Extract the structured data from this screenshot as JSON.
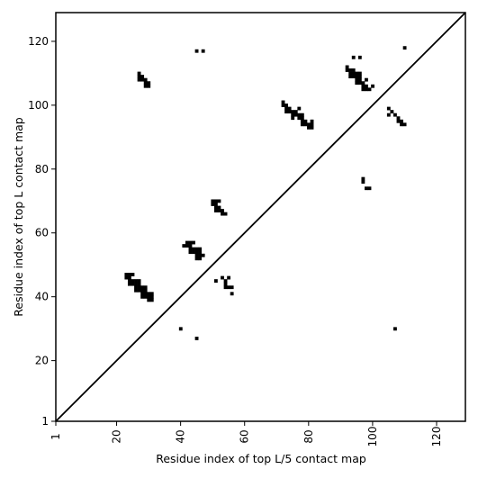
{
  "chart_data": {
    "type": "heatmap",
    "title": "",
    "xlabel": "Residue index of top L/5 contact map",
    "ylabel": "Residue index of top L contact map",
    "xlim": [
      1,
      129
    ],
    "ylim": [
      1,
      129
    ],
    "x_ticks": [
      1,
      20,
      40,
      60,
      80,
      100,
      120
    ],
    "y_ticks": [
      1,
      20,
      40,
      60,
      80,
      100,
      120
    ],
    "x_tick_labels": [
      "1",
      "20",
      "40",
      "60",
      "80",
      "100",
      "120"
    ],
    "y_tick_labels": [
      "1",
      "20",
      "40",
      "60",
      "80",
      "100",
      "120"
    ],
    "grid": false,
    "diagonal": true,
    "cell_color": "#000000",
    "background": "#ffffff",
    "cells_upper": [
      [
        27,
        110
      ],
      [
        27,
        109
      ],
      [
        28,
        109
      ],
      [
        28,
        108
      ],
      [
        27,
        108
      ],
      [
        29,
        108
      ],
      [
        29,
        107
      ],
      [
        30,
        107
      ],
      [
        29,
        106
      ],
      [
        30,
        106
      ],
      [
        45,
        117
      ],
      [
        47,
        117
      ],
      [
        50,
        70
      ],
      [
        51,
        70
      ],
      [
        52,
        70
      ],
      [
        50,
        69
      ],
      [
        51,
        69
      ],
      [
        51,
        68
      ],
      [
        52,
        68
      ],
      [
        51,
        67
      ],
      [
        52,
        67
      ],
      [
        53,
        67
      ],
      [
        53,
        66
      ],
      [
        54,
        66
      ],
      [
        72,
        101
      ],
      [
        72,
        100
      ],
      [
        73,
        100
      ],
      [
        73,
        99
      ],
      [
        74,
        99
      ],
      [
        73,
        98
      ],
      [
        74,
        98
      ],
      [
        75,
        98
      ],
      [
        75,
        97
      ],
      [
        76,
        97
      ],
      [
        77,
        97
      ],
      [
        77,
        99
      ],
      [
        76,
        98
      ],
      [
        75,
        96
      ],
      [
        77,
        96
      ],
      [
        78,
        96
      ],
      [
        78,
        97
      ],
      [
        78,
        95
      ],
      [
        79,
        95
      ],
      [
        78,
        94
      ],
      [
        79,
        94
      ],
      [
        80,
        94
      ],
      [
        81,
        94
      ],
      [
        80,
        93
      ],
      [
        81,
        93
      ],
      [
        81,
        95
      ],
      [
        92,
        112
      ],
      [
        92,
        111
      ],
      [
        93,
        111
      ],
      [
        94,
        111
      ],
      [
        93,
        110
      ],
      [
        94,
        110
      ],
      [
        95,
        110
      ],
      [
        96,
        110
      ],
      [
        93,
        109
      ],
      [
        94,
        109
      ],
      [
        95,
        109
      ],
      [
        96,
        109
      ],
      [
        95,
        108
      ],
      [
        96,
        108
      ],
      [
        95,
        107
      ],
      [
        96,
        107
      ],
      [
        97,
        107
      ],
      [
        98,
        108
      ],
      [
        97,
        106
      ],
      [
        98,
        106
      ],
      [
        97,
        105
      ],
      [
        98,
        105
      ],
      [
        99,
        105
      ],
      [
        100,
        106
      ],
      [
        94,
        115
      ],
      [
        96,
        115
      ],
      [
        110,
        118
      ],
      [
        105,
        99
      ],
      [
        106,
        98
      ],
      [
        107,
        97
      ],
      [
        105,
        97
      ],
      [
        108,
        96
      ],
      [
        108,
        95
      ],
      [
        109,
        95
      ],
      [
        109,
        94
      ],
      [
        110,
        94
      ]
    ],
    "cells_lower": [
      [
        23,
        47
      ],
      [
        24,
        47
      ],
      [
        25,
        47
      ],
      [
        23,
        46
      ],
      [
        24,
        46
      ],
      [
        24,
        45
      ],
      [
        25,
        45
      ],
      [
        26,
        45
      ],
      [
        27,
        45
      ],
      [
        24,
        44
      ],
      [
        25,
        44
      ],
      [
        26,
        44
      ],
      [
        27,
        44
      ],
      [
        26,
        43
      ],
      [
        27,
        43
      ],
      [
        28,
        43
      ],
      [
        29,
        43
      ],
      [
        26,
        42
      ],
      [
        27,
        42
      ],
      [
        28,
        42
      ],
      [
        29,
        42
      ],
      [
        28,
        41
      ],
      [
        29,
        41
      ],
      [
        30,
        41
      ],
      [
        31,
        41
      ],
      [
        28,
        40
      ],
      [
        29,
        40
      ],
      [
        30,
        40
      ],
      [
        31,
        40
      ],
      [
        30,
        39
      ],
      [
        31,
        39
      ],
      [
        42,
        57
      ],
      [
        43,
        57
      ],
      [
        44,
        57
      ],
      [
        41,
        56
      ],
      [
        42,
        56
      ],
      [
        43,
        56
      ],
      [
        43,
        55
      ],
      [
        44,
        55
      ],
      [
        45,
        55
      ],
      [
        46,
        55
      ],
      [
        43,
        54
      ],
      [
        44,
        54
      ],
      [
        45,
        54
      ],
      [
        46,
        54
      ],
      [
        45,
        53
      ],
      [
        46,
        53
      ],
      [
        47,
        53
      ],
      [
        45,
        52
      ],
      [
        46,
        52
      ],
      [
        51,
        45
      ],
      [
        53,
        46
      ],
      [
        55,
        46
      ],
      [
        54,
        45
      ],
      [
        54,
        44
      ],
      [
        54,
        43
      ],
      [
        55,
        43
      ],
      [
        56,
        43
      ],
      [
        56,
        41
      ],
      [
        40,
        30
      ],
      [
        45,
        27
      ],
      [
        97,
        77
      ],
      [
        97,
        76
      ],
      [
        98,
        74
      ],
      [
        99,
        74
      ],
      [
        107,
        30
      ]
    ]
  }
}
